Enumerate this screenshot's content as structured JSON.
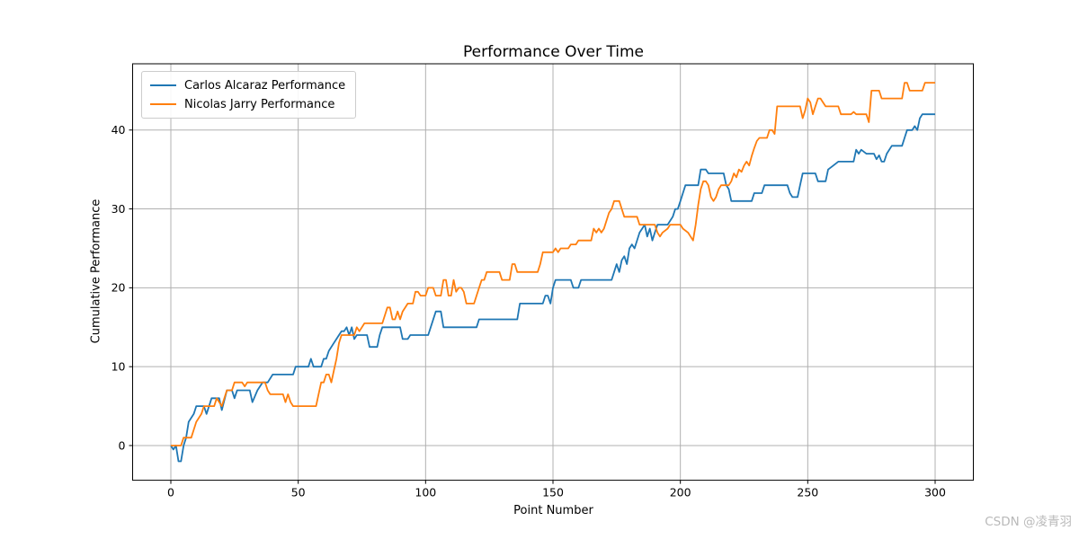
{
  "watermark": {
    "text": "CSDN @凌青羽"
  },
  "chart_data": {
    "type": "line",
    "title": "Performance Over Time",
    "xlabel": "Point Number",
    "ylabel": "Cumulative Performance",
    "xlim": [
      -15,
      315
    ],
    "ylim": [
      -4.4,
      48.4
    ],
    "xticks": [
      0,
      50,
      100,
      150,
      200,
      250,
      300
    ],
    "yticks": [
      0,
      10,
      20,
      30,
      40
    ],
    "grid": true,
    "grid_color": "#b0b0b0",
    "spine_color": "#000000",
    "legend_position": "upper left",
    "series": [
      {
        "name": "Carlos Alcaraz Performance",
        "color": "#1f77b4",
        "points": [
          [
            0,
            0
          ],
          [
            1,
            -0.5
          ],
          [
            2,
            0
          ],
          [
            3,
            -2
          ],
          [
            4,
            -2
          ],
          [
            5,
            0
          ],
          [
            6,
            1
          ],
          [
            7,
            3
          ],
          [
            9,
            4
          ],
          [
            10,
            5
          ],
          [
            13,
            5
          ],
          [
            14,
            4
          ],
          [
            16,
            6
          ],
          [
            19,
            6
          ],
          [
            20,
            4.5
          ],
          [
            22,
            7
          ],
          [
            24,
            7
          ],
          [
            25,
            6
          ],
          [
            26,
            7
          ],
          [
            31,
            7
          ],
          [
            32,
            5.5
          ],
          [
            34,
            7
          ],
          [
            36,
            8
          ],
          [
            38,
            8
          ],
          [
            40,
            9
          ],
          [
            48,
            9
          ],
          [
            49,
            10
          ],
          [
            54,
            10
          ],
          [
            55,
            11
          ],
          [
            56,
            10
          ],
          [
            59,
            10
          ],
          [
            60,
            11
          ],
          [
            61,
            11
          ],
          [
            62,
            12
          ],
          [
            64,
            13
          ],
          [
            66,
            14
          ],
          [
            67,
            14.5
          ],
          [
            68,
            14.5
          ],
          [
            69,
            15
          ],
          [
            70,
            14
          ],
          [
            71,
            15
          ],
          [
            72,
            13.5
          ],
          [
            73,
            14
          ],
          [
            77,
            14
          ],
          [
            78,
            12.5
          ],
          [
            81,
            12.5
          ],
          [
            82,
            14
          ],
          [
            83,
            15
          ],
          [
            90,
            15
          ],
          [
            91,
            13.5
          ],
          [
            93,
            13.5
          ],
          [
            94,
            14
          ],
          [
            101,
            14
          ],
          [
            102,
            15
          ],
          [
            104,
            17
          ],
          [
            106,
            17
          ],
          [
            107,
            15
          ],
          [
            120,
            15
          ],
          [
            121,
            16
          ],
          [
            136,
            16
          ],
          [
            137,
            18
          ],
          [
            146,
            18
          ],
          [
            147,
            19
          ],
          [
            148,
            19
          ],
          [
            149,
            18
          ],
          [
            150,
            20
          ],
          [
            151,
            21
          ],
          [
            157,
            21
          ],
          [
            158,
            20
          ],
          [
            160,
            20
          ],
          [
            161,
            21
          ],
          [
            173,
            21
          ],
          [
            174,
            22
          ],
          [
            175,
            23
          ],
          [
            176,
            22
          ],
          [
            177,
            23.5
          ],
          [
            178,
            24
          ],
          [
            179,
            23
          ],
          [
            180,
            25
          ],
          [
            181,
            25.5
          ],
          [
            182,
            25
          ],
          [
            184,
            27
          ],
          [
            185,
            27.5
          ],
          [
            186,
            28
          ],
          [
            187,
            26.5
          ],
          [
            188,
            27.5
          ],
          [
            189,
            26
          ],
          [
            190,
            27
          ],
          [
            191,
            28
          ],
          [
            195,
            28
          ],
          [
            197,
            29
          ],
          [
            198,
            30
          ],
          [
            199,
            30
          ],
          [
            200,
            31
          ],
          [
            201,
            32
          ],
          [
            202,
            33
          ],
          [
            207,
            33
          ],
          [
            208,
            35
          ],
          [
            210,
            35
          ],
          [
            211,
            34.5
          ],
          [
            217,
            34.5
          ],
          [
            218,
            33
          ],
          [
            219,
            32.5
          ],
          [
            220,
            31
          ],
          [
            228,
            31
          ],
          [
            229,
            32
          ],
          [
            232,
            32
          ],
          [
            233,
            33
          ],
          [
            242,
            33
          ],
          [
            243,
            32
          ],
          [
            244,
            31.5
          ],
          [
            246,
            31.5
          ],
          [
            247,
            33
          ],
          [
            248,
            34.5
          ],
          [
            253,
            34.5
          ],
          [
            254,
            33.5
          ],
          [
            257,
            33.5
          ],
          [
            258,
            35
          ],
          [
            260,
            35.5
          ],
          [
            262,
            36
          ],
          [
            268,
            36
          ],
          [
            269,
            37.5
          ],
          [
            270,
            37
          ],
          [
            271,
            37.5
          ],
          [
            273,
            37
          ],
          [
            276,
            37
          ],
          [
            277,
            36.3
          ],
          [
            278,
            36.8
          ],
          [
            279,
            36
          ],
          [
            280,
            36
          ],
          [
            281,
            37
          ],
          [
            283,
            38
          ],
          [
            287,
            38
          ],
          [
            288,
            39
          ],
          [
            289,
            40
          ],
          [
            291,
            40
          ],
          [
            292,
            40.5
          ],
          [
            293,
            40
          ],
          [
            294,
            41.5
          ],
          [
            295,
            42
          ],
          [
            300,
            42
          ]
        ]
      },
      {
        "name": "Nicolas Jarry Performance",
        "color": "#ff7f0e",
        "points": [
          [
            0,
            0
          ],
          [
            4,
            0
          ],
          [
            5,
            1
          ],
          [
            8,
            1
          ],
          [
            9,
            2
          ],
          [
            10,
            3
          ],
          [
            12,
            4
          ],
          [
            13,
            5
          ],
          [
            17,
            5
          ],
          [
            18,
            6
          ],
          [
            20,
            5
          ],
          [
            21,
            6
          ],
          [
            22,
            7
          ],
          [
            24,
            7
          ],
          [
            25,
            8
          ],
          [
            28,
            8
          ],
          [
            29,
            7.5
          ],
          [
            30,
            8
          ],
          [
            37,
            8
          ],
          [
            38,
            7
          ],
          [
            39,
            6.5
          ],
          [
            44,
            6.5
          ],
          [
            45,
            5.5
          ],
          [
            46,
            6.5
          ],
          [
            47,
            5.5
          ],
          [
            48,
            5
          ],
          [
            57,
            5
          ],
          [
            58,
            6.5
          ],
          [
            59,
            8
          ],
          [
            60,
            8
          ],
          [
            61,
            9
          ],
          [
            62,
            9
          ],
          [
            63,
            8
          ],
          [
            64,
            9.5
          ],
          [
            65,
            11
          ],
          [
            66,
            13
          ],
          [
            67,
            14
          ],
          [
            72,
            14
          ],
          [
            73,
            15
          ],
          [
            74,
            14.5
          ],
          [
            75,
            15
          ],
          [
            76,
            15.5
          ],
          [
            83,
            15.5
          ],
          [
            84,
            16.5
          ],
          [
            85,
            17.5
          ],
          [
            86,
            17.5
          ],
          [
            87,
            16
          ],
          [
            88,
            16
          ],
          [
            89,
            17
          ],
          [
            90,
            16
          ],
          [
            91,
            17
          ],
          [
            92,
            17.5
          ],
          [
            93,
            18
          ],
          [
            95,
            18
          ],
          [
            96,
            19.5
          ],
          [
            97,
            19.5
          ],
          [
            98,
            19
          ],
          [
            100,
            19
          ],
          [
            101,
            20
          ],
          [
            103,
            20
          ],
          [
            104,
            19
          ],
          [
            106,
            19
          ],
          [
            107,
            21
          ],
          [
            108,
            21
          ],
          [
            109,
            19
          ],
          [
            110,
            19
          ],
          [
            111,
            21
          ],
          [
            112,
            19.5
          ],
          [
            113,
            20
          ],
          [
            114,
            20
          ],
          [
            115,
            19.5
          ],
          [
            116,
            18
          ],
          [
            119,
            18
          ],
          [
            120,
            19
          ],
          [
            121,
            20
          ],
          [
            122,
            21
          ],
          [
            123,
            21
          ],
          [
            124,
            22
          ],
          [
            129,
            22
          ],
          [
            130,
            21
          ],
          [
            133,
            21
          ],
          [
            134,
            23
          ],
          [
            135,
            23
          ],
          [
            136,
            22
          ],
          [
            144,
            22
          ],
          [
            145,
            23
          ],
          [
            146,
            24.5
          ],
          [
            150,
            24.5
          ],
          [
            151,
            25
          ],
          [
            152,
            24.5
          ],
          [
            153,
            25
          ],
          [
            156,
            25
          ],
          [
            157,
            25.5
          ],
          [
            159,
            25.5
          ],
          [
            160,
            26
          ],
          [
            165,
            26
          ],
          [
            166,
            27.5
          ],
          [
            167,
            27
          ],
          [
            168,
            27.5
          ],
          [
            169,
            27
          ],
          [
            170,
            27.5
          ],
          [
            171,
            28.5
          ],
          [
            172,
            29.5
          ],
          [
            173,
            30
          ],
          [
            174,
            31
          ],
          [
            176,
            31
          ],
          [
            177,
            30
          ],
          [
            178,
            29
          ],
          [
            183,
            29
          ],
          [
            184,
            28
          ],
          [
            190,
            28
          ],
          [
            191,
            27
          ],
          [
            192,
            26.5
          ],
          [
            193,
            27
          ],
          [
            195,
            27.5
          ],
          [
            196,
            28
          ],
          [
            200,
            28
          ],
          [
            201,
            27.5
          ],
          [
            203,
            27
          ],
          [
            204,
            26.5
          ],
          [
            205,
            26
          ],
          [
            206,
            28
          ],
          [
            207,
            30.5
          ],
          [
            208,
            32.5
          ],
          [
            209,
            33.5
          ],
          [
            210,
            33.5
          ],
          [
            211,
            33
          ],
          [
            212,
            31.5
          ],
          [
            213,
            31
          ],
          [
            214,
            31.5
          ],
          [
            215,
            32.5
          ],
          [
            216,
            33
          ],
          [
            219,
            33
          ],
          [
            220,
            33.5
          ],
          [
            221,
            34.5
          ],
          [
            222,
            34
          ],
          [
            223,
            35
          ],
          [
            224,
            34.7
          ],
          [
            225,
            35.5
          ],
          [
            226,
            36
          ],
          [
            227,
            35.5
          ],
          [
            228,
            36.7
          ],
          [
            229,
            37.7
          ],
          [
            230,
            38.6
          ],
          [
            231,
            39
          ],
          [
            234,
            39
          ],
          [
            235,
            40
          ],
          [
            236,
            40
          ],
          [
            237,
            39.5
          ],
          [
            238,
            43
          ],
          [
            247,
            43
          ],
          [
            248,
            41.5
          ],
          [
            249,
            42.5
          ],
          [
            250,
            44
          ],
          [
            251,
            43.5
          ],
          [
            252,
            42
          ],
          [
            253,
            43
          ],
          [
            254,
            44
          ],
          [
            255,
            44
          ],
          [
            256,
            43.5
          ],
          [
            257,
            43
          ],
          [
            262,
            43
          ],
          [
            263,
            42
          ],
          [
            267,
            42
          ],
          [
            268,
            42.3
          ],
          [
            269,
            42
          ],
          [
            273,
            42
          ],
          [
            274,
            41
          ],
          [
            275,
            45
          ],
          [
            278,
            45
          ],
          [
            279,
            44
          ],
          [
            287,
            44
          ],
          [
            288,
            46
          ],
          [
            289,
            46
          ],
          [
            290,
            45
          ],
          [
            295,
            45
          ],
          [
            296,
            46
          ],
          [
            300,
            46
          ]
        ]
      }
    ]
  }
}
